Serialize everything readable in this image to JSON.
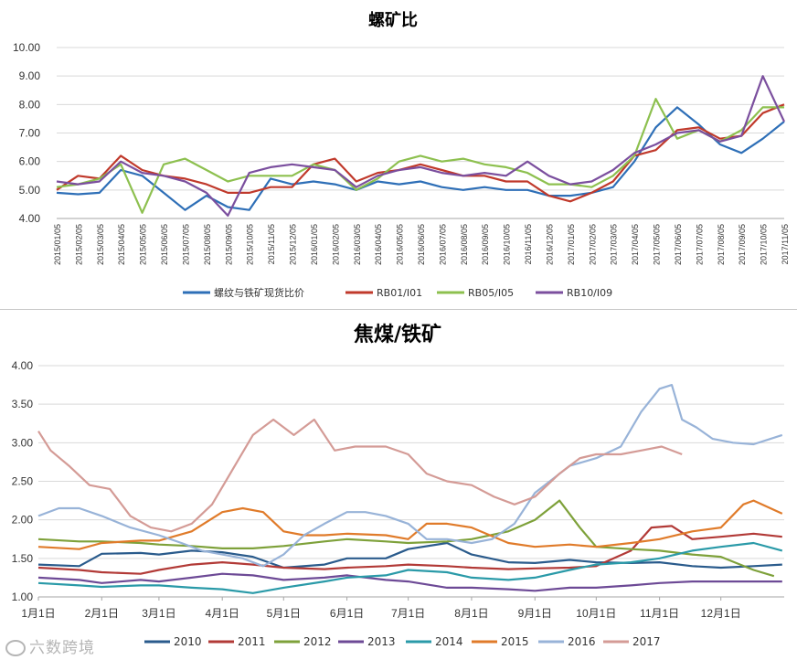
{
  "chart_data": [
    {
      "type": "line",
      "title": "螺矿比",
      "ylim": [
        4.0,
        10.0
      ],
      "yticks": [
        "4.00",
        "5.00",
        "6.00",
        "7.00",
        "8.00",
        "9.00",
        "10.00"
      ],
      "x": [
        "2015/01/05",
        "2015/02/05",
        "2015/03/05",
        "2015/04/05",
        "2015/05/05",
        "2015/06/05",
        "2015/07/05",
        "2015/08/05",
        "2015/09/05",
        "2015/10/05",
        "2015/11/05",
        "2015/12/05",
        "2016/01/05",
        "2016/02/05",
        "2016/03/05",
        "2016/04/05",
        "2016/05/05",
        "2016/06/05",
        "2016/07/05",
        "2016/08/05",
        "2016/09/05",
        "2016/10/05",
        "2016/11/05",
        "2016/12/05",
        "2017/01/05",
        "2017/02/05",
        "2017/03/05",
        "2017/04/05",
        "2017/05/05",
        "2017/06/05",
        "2017/07/05",
        "2017/08/05",
        "2017/09/05",
        "2017/10/05",
        "2017/11/05"
      ],
      "grid": true,
      "legend_position": "bottom",
      "series": [
        {
          "name": "螺纹与铁矿现货比价",
          "color": "#2e6fb7",
          "values": [
            4.9,
            4.85,
            4.9,
            5.7,
            5.5,
            4.9,
            4.3,
            4.8,
            4.4,
            4.3,
            5.4,
            5.2,
            5.3,
            5.2,
            5.0,
            5.3,
            5.2,
            5.3,
            5.1,
            5.0,
            5.1,
            5.0,
            5.0,
            4.8,
            4.8,
            4.9,
            5.1,
            6.0,
            7.2,
            7.9,
            7.3,
            6.6,
            6.3,
            6.8,
            7.4
          ]
        },
        {
          "name": "RB01/I01",
          "color": "#c0392b",
          "values": [
            5.0,
            5.5,
            5.4,
            6.2,
            5.7,
            5.5,
            5.4,
            5.2,
            4.9,
            4.9,
            5.1,
            5.1,
            5.9,
            6.1,
            5.3,
            5.6,
            5.7,
            5.9,
            5.7,
            5.5,
            5.5,
            5.3,
            5.3,
            4.8,
            4.6,
            4.9,
            5.3,
            6.2,
            6.4,
            7.1,
            7.2,
            6.8,
            6.9,
            7.7,
            8.0
          ]
        },
        {
          "name": "RB05/I05",
          "color": "#8dc04f",
          "values": [
            5.1,
            5.2,
            5.4,
            5.9,
            4.2,
            5.9,
            6.1,
            5.7,
            5.3,
            5.5,
            5.5,
            5.5,
            5.9,
            5.7,
            5.0,
            5.4,
            6.0,
            6.2,
            6.0,
            6.1,
            5.9,
            5.8,
            5.6,
            5.2,
            5.2,
            5.1,
            5.5,
            6.2,
            8.2,
            6.8,
            7.1,
            6.7,
            7.1,
            7.9,
            7.9
          ]
        },
        {
          "name": "RB10/I09",
          "color": "#7b4f9e",
          "values": [
            5.3,
            5.2,
            5.3,
            6.0,
            5.6,
            5.5,
            5.3,
            4.9,
            4.1,
            5.6,
            5.8,
            5.9,
            5.8,
            5.7,
            5.1,
            5.5,
            5.7,
            5.8,
            5.6,
            5.5,
            5.6,
            5.5,
            6.0,
            5.5,
            5.2,
            5.3,
            5.7,
            6.3,
            6.6,
            7.0,
            7.1,
            6.7,
            6.9,
            9.0,
            7.4
          ]
        }
      ]
    },
    {
      "type": "line",
      "title": "焦煤/铁矿",
      "ylim": [
        1.0,
        4.0
      ],
      "yticks": [
        "1.00",
        "1.50",
        "2.00",
        "2.50",
        "3.00",
        "3.50",
        "4.00"
      ],
      "categories": [
        "1月1日",
        "2月1日",
        "3月1日",
        "4月1日",
        "5月1日",
        "6月1日",
        "7月1日",
        "8月1日",
        "9月1日",
        "10月1日",
        "11月1日",
        "12月1日"
      ],
      "x_day_range": [
        0,
        365
      ],
      "grid": true,
      "legend_position": "bottom",
      "series": [
        {
          "name": "2010",
          "color": "#2a5b8c",
          "x": [
            0,
            20,
            31,
            50,
            59,
            75,
            90,
            105,
            120,
            140,
            151,
            170,
            181,
            200,
            212,
            230,
            243,
            260,
            273,
            290,
            304,
            320,
            334,
            350,
            364
          ],
          "values": [
            1.42,
            1.4,
            1.56,
            1.57,
            1.55,
            1.6,
            1.58,
            1.52,
            1.38,
            1.42,
            1.5,
            1.5,
            1.62,
            1.7,
            1.55,
            1.45,
            1.44,
            1.48,
            1.45,
            1.44,
            1.45,
            1.4,
            1.38,
            1.4,
            1.42
          ]
        },
        {
          "name": "2011",
          "color": "#b23a37",
          "x": [
            0,
            20,
            31,
            50,
            59,
            75,
            90,
            105,
            120,
            140,
            151,
            170,
            181,
            200,
            212,
            230,
            243,
            260,
            273,
            290,
            300,
            310,
            320,
            334,
            350,
            364
          ],
          "values": [
            1.38,
            1.35,
            1.32,
            1.3,
            1.35,
            1.42,
            1.45,
            1.42,
            1.38,
            1.36,
            1.38,
            1.4,
            1.42,
            1.4,
            1.38,
            1.36,
            1.37,
            1.38,
            1.4,
            1.6,
            1.9,
            1.92,
            1.75,
            1.78,
            1.82,
            1.78
          ]
        },
        {
          "name": "2012",
          "color": "#7ea13a",
          "x": [
            0,
            20,
            31,
            50,
            59,
            75,
            90,
            105,
            120,
            140,
            151,
            170,
            181,
            200,
            212,
            230,
            243,
            255,
            265,
            273,
            290,
            304,
            320,
            334,
            350,
            360
          ],
          "values": [
            1.75,
            1.72,
            1.72,
            1.7,
            1.68,
            1.66,
            1.63,
            1.63,
            1.66,
            1.72,
            1.75,
            1.72,
            1.7,
            1.72,
            1.75,
            1.85,
            2.0,
            2.25,
            1.9,
            1.65,
            1.62,
            1.6,
            1.55,
            1.52,
            1.35,
            1.27
          ]
        },
        {
          "name": "2013",
          "color": "#6d4a96",
          "x": [
            0,
            20,
            31,
            50,
            59,
            75,
            90,
            105,
            120,
            140,
            151,
            170,
            181,
            200,
            212,
            230,
            243,
            260,
            273,
            290,
            304,
            320,
            334,
            350,
            364
          ],
          "values": [
            1.25,
            1.22,
            1.18,
            1.22,
            1.2,
            1.25,
            1.3,
            1.28,
            1.22,
            1.25,
            1.28,
            1.22,
            1.2,
            1.12,
            1.12,
            1.1,
            1.08,
            1.12,
            1.12,
            1.15,
            1.18,
            1.2,
            1.2,
            1.2,
            1.2
          ]
        },
        {
          "name": "2014",
          "color": "#2a9aa8",
          "x": [
            0,
            20,
            31,
            50,
            59,
            75,
            90,
            105,
            120,
            140,
            151,
            170,
            181,
            200,
            212,
            230,
            243,
            260,
            273,
            290,
            304,
            320,
            334,
            350,
            364
          ],
          "values": [
            1.18,
            1.15,
            1.13,
            1.15,
            1.15,
            1.12,
            1.1,
            1.05,
            1.12,
            1.2,
            1.25,
            1.28,
            1.35,
            1.32,
            1.25,
            1.22,
            1.25,
            1.35,
            1.42,
            1.45,
            1.5,
            1.6,
            1.65,
            1.7,
            1.6
          ]
        },
        {
          "name": "2015",
          "color": "#e07b2a",
          "x": [
            0,
            20,
            31,
            50,
            59,
            75,
            90,
            100,
            110,
            120,
            130,
            140,
            151,
            170,
            181,
            190,
            200,
            212,
            230,
            243,
            260,
            273,
            290,
            304,
            320,
            334,
            345,
            350,
            364
          ],
          "values": [
            1.65,
            1.62,
            1.7,
            1.73,
            1.73,
            1.85,
            2.1,
            2.15,
            2.1,
            1.85,
            1.8,
            1.8,
            1.82,
            1.8,
            1.75,
            1.95,
            1.95,
            1.9,
            1.7,
            1.65,
            1.68,
            1.65,
            1.7,
            1.75,
            1.85,
            1.9,
            2.2,
            2.25,
            2.08
          ]
        },
        {
          "name": "2016",
          "color": "#98b3d8",
          "x": [
            0,
            10,
            20,
            31,
            45,
            59,
            70,
            80,
            90,
            100,
            110,
            120,
            130,
            140,
            151,
            160,
            170,
            181,
            190,
            200,
            212,
            222,
            233,
            243,
            260,
            273,
            285,
            295,
            304,
            310,
            315,
            322,
            330,
            340,
            350,
            364
          ],
          "values": [
            2.05,
            2.15,
            2.15,
            2.05,
            1.9,
            1.8,
            1.7,
            1.6,
            1.55,
            1.5,
            1.4,
            1.55,
            1.8,
            1.95,
            2.1,
            2.1,
            2.05,
            1.95,
            1.75,
            1.75,
            1.7,
            1.75,
            1.95,
            2.35,
            2.7,
            2.8,
            2.95,
            3.4,
            3.7,
            3.75,
            3.3,
            3.2,
            3.05,
            3.0,
            2.98,
            3.1
          ]
        },
        {
          "name": "2017",
          "color": "#d49b96",
          "x": [
            0,
            6,
            15,
            25,
            35,
            45,
            55,
            65,
            75,
            85,
            95,
            105,
            115,
            125,
            135,
            145,
            155,
            170,
            181,
            190,
            200,
            212,
            223,
            233,
            243,
            255,
            265,
            273,
            285,
            295,
            305,
            315
          ],
          "values": [
            3.15,
            2.9,
            2.7,
            2.45,
            2.4,
            2.05,
            1.9,
            1.85,
            1.95,
            2.2,
            2.65,
            3.1,
            3.3,
            3.1,
            3.3,
            2.9,
            2.95,
            2.95,
            2.85,
            2.6,
            2.5,
            2.45,
            2.3,
            2.2,
            2.3,
            2.6,
            2.8,
            2.85,
            2.85,
            2.9,
            2.95,
            2.85
          ]
        }
      ]
    }
  ],
  "watermark": "六数跨境"
}
